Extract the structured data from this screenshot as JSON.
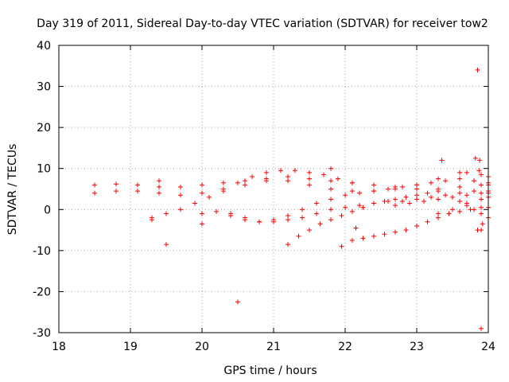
{
  "chart_data": {
    "type": "scatter",
    "title": "Day 319 of 2011, Sidereal Day-to-day VTEC variation (SDTVAR) for receiver tow2",
    "xlabel": "GPS time / hours",
    "ylabel": "SDTVAR / TECUs",
    "xlim": [
      18,
      24
    ],
    "ylim": [
      -30,
      40
    ],
    "xticks": [
      18,
      19,
      20,
      21,
      22,
      23,
      24
    ],
    "yticks": [
      -30,
      -20,
      -10,
      0,
      10,
      20,
      30,
      40
    ],
    "xtick_labels": [
      "18",
      "19",
      "20",
      "21",
      "22",
      "23",
      "24"
    ],
    "ytick_labels": [
      "-30",
      "-20",
      "-10",
      "0",
      "10",
      "20",
      "30",
      "40"
    ],
    "grid": true,
    "legend": "none",
    "marker": "+",
    "color": "#ff0000",
    "series": [
      {
        "x": [
          18.5,
          18.8,
          19.1,
          19.4,
          19.7,
          20.0,
          20.3,
          20.6,
          20.9,
          21.2,
          21.5,
          21.8,
          22.1,
          22.4,
          22.7,
          23.0,
          23.3,
          23.6,
          23.9,
          24.0
        ],
        "y": [
          6.0,
          6.2,
          6.0,
          5.5,
          5.5,
          6.0,
          6.5,
          7.0,
          7.5,
          7.0,
          6.0,
          5.0,
          4.5,
          4.5,
          5.0,
          6.0,
          7.5,
          9.0,
          8.5,
          8.0
        ]
      },
      {
        "x": [
          18.5,
          18.8,
          19.1,
          19.4,
          19.7,
          20.0,
          20.3,
          20.6,
          20.9,
          21.2,
          21.5,
          21.8,
          22.1,
          22.4,
          22.7,
          23.0,
          23.3,
          23.6,
          23.9,
          24.0
        ],
        "y": [
          4.0,
          4.5,
          4.5,
          4.0,
          3.5,
          4.0,
          5.0,
          6.0,
          7.0,
          8.0,
          7.5,
          7.0,
          6.5,
          6.0,
          5.5,
          5.0,
          5.0,
          5.5,
          6.0,
          6.0
        ]
      },
      {
        "x": [
          19.3,
          19.5,
          19.7,
          19.9,
          20.1,
          20.3,
          20.5,
          20.7,
          20.9,
          21.1,
          21.3,
          21.5,
          21.7,
          21.9,
          22.1
        ],
        "y": [
          -2.0,
          -1.0,
          0.0,
          1.5,
          3.0,
          4.5,
          6.5,
          8.0,
          9.0,
          9.5,
          9.5,
          9.0,
          8.5,
          7.5,
          6.5
        ]
      },
      {
        "x": [
          20.0,
          20.2,
          20.4,
          20.6,
          20.8,
          21.0,
          21.2,
          21.4,
          21.6,
          21.8,
          22.0,
          22.2,
          22.4,
          22.6,
          22.8,
          23.0,
          23.2,
          23.4,
          23.6,
          23.8,
          24.0
        ],
        "y": [
          -1.0,
          -0.5,
          -1.5,
          -2.5,
          -3.0,
          -2.5,
          -1.5,
          0.0,
          1.5,
          2.5,
          3.5,
          4.0,
          4.5,
          5.0,
          5.5,
          6.0,
          6.5,
          7.0,
          7.5,
          7.0,
          6.5
        ]
      },
      {
        "x": [
          20.4,
          20.6,
          20.8,
          21.0,
          21.2,
          21.4,
          21.6,
          21.8,
          22.0,
          22.2,
          22.4,
          22.6,
          22.8,
          23.0,
          23.2,
          23.4,
          23.6,
          23.8,
          24.0
        ],
        "y": [
          -1.0,
          -2.0,
          -3.0,
          -3.0,
          -2.5,
          -2.0,
          -1.0,
          0.0,
          0.5,
          1.0,
          1.5,
          2.0,
          2.0,
          2.5,
          3.0,
          3.5,
          4.0,
          4.5,
          4.5
        ]
      },
      {
        "x": [
          21.2,
          21.35,
          21.5,
          21.65,
          21.8,
          21.95,
          22.1,
          22.25,
          22.4,
          22.55,
          22.7,
          22.85,
          23.0,
          23.15,
          23.3
        ],
        "y": [
          -8.5,
          -6.5,
          -5.0,
          -3.5,
          -2.5,
          -1.5,
          -0.5,
          0.5,
          1.5,
          2.0,
          2.5,
          3.0,
          3.5,
          4.0,
          4.5
        ]
      },
      {
        "x": [
          21.95,
          22.1,
          22.25,
          22.4,
          22.55,
          22.7,
          22.85,
          23.0,
          23.15,
          23.3,
          23.45,
          23.6,
          23.75,
          23.9,
          24.0
        ],
        "y": [
          -9.0,
          -7.5,
          -7.0,
          -6.5,
          -6.0,
          -5.5,
          -5.0,
          -4.0,
          -3.0,
          -2.0,
          -1.0,
          -0.5,
          0.0,
          0.5,
          0.5
        ]
      },
      {
        "x": [
          22.7,
          22.9,
          23.1,
          23.3,
          23.5,
          23.7,
          23.9,
          24.0
        ],
        "y": [
          1.0,
          1.5,
          2.0,
          2.5,
          3.0,
          3.5,
          4.0,
          4.0
        ]
      },
      {
        "x": [
          23.3,
          23.5,
          23.7,
          23.9,
          24.0
        ],
        "y": [
          -1.0,
          0.0,
          1.5,
          2.5,
          3.0
        ]
      },
      {
        "x": [
          23.6,
          23.7,
          23.8,
          23.9,
          24.0
        ],
        "y": [
          2.0,
          1.0,
          0.0,
          -1.0,
          -2.0
        ]
      },
      {
        "x": [
          19.3,
          19.4,
          19.5,
          20.0,
          20.5,
          21.8,
          22.15,
          23.35,
          23.85,
          23.82,
          23.87,
          23.9,
          23.85,
          23.9,
          23.88,
          23.92,
          23.7
        ],
        "y": [
          -2.5,
          7.0,
          -8.5,
          -3.5,
          -22.5,
          10.0,
          -4.5,
          12.0,
          34.0,
          12.5,
          9.5,
          -29.0,
          -5.0,
          -5.0,
          12.0,
          -3.5,
          9.0
        ]
      }
    ]
  }
}
